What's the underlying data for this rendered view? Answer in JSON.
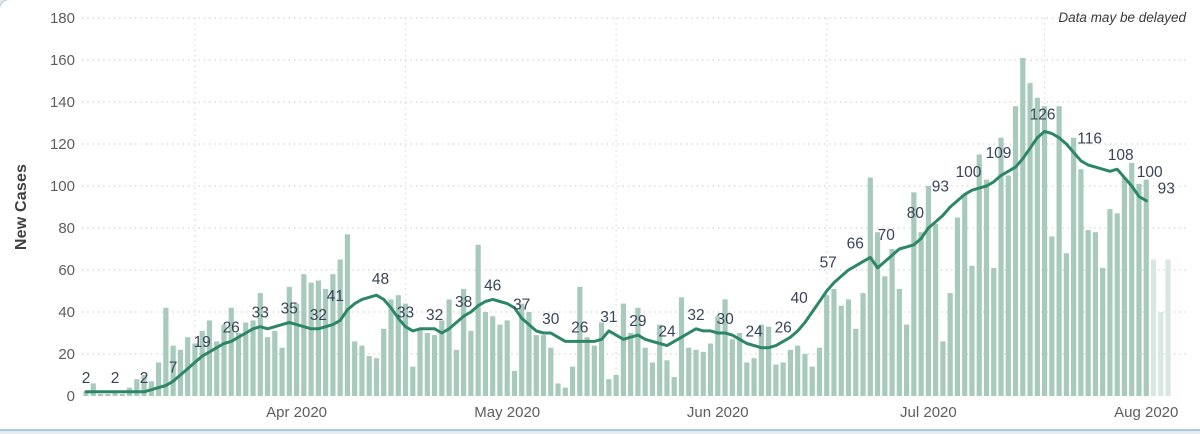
{
  "annotation": "Data may be delayed",
  "chart_data": {
    "type": "bar+line",
    "ylabel": "New Cases",
    "ylim": [
      0,
      180
    ],
    "y_ticks": [
      0,
      20,
      40,
      60,
      80,
      100,
      120,
      140,
      160,
      180
    ],
    "grid": "dotted",
    "x_months": [
      {
        "label": "Apr 2020",
        "center_index": 29,
        "start_index": 15
      },
      {
        "label": "May 2020",
        "center_index": 58,
        "start_index": 44
      },
      {
        "label": "Jun 2020",
        "center_index": 87,
        "start_index": 73
      },
      {
        "label": "Jul 2020",
        "center_index": 116,
        "start_index": 102
      },
      {
        "label": "Aug 2020",
        "center_index": 146,
        "start_index": 132
      }
    ],
    "bars": {
      "faded_last_n": 3,
      "values": [
        2,
        6,
        1,
        1,
        2,
        1,
        4,
        8,
        10,
        7,
        16,
        42,
        24,
        22,
        28,
        25,
        31,
        36,
        26,
        34,
        42,
        30,
        35,
        36,
        49,
        28,
        31,
        23,
        52,
        44,
        58,
        54,
        55,
        51,
        58,
        65,
        77,
        26,
        24,
        19,
        18,
        32,
        46,
        48,
        44,
        14,
        32,
        30,
        29,
        36,
        46,
        22,
        51,
        31,
        72,
        40,
        38,
        34,
        36,
        12,
        44,
        40,
        29,
        29,
        23,
        6,
        4,
        14,
        52,
        28,
        24,
        35,
        8,
        10,
        44,
        30,
        42,
        23,
        16,
        34,
        17,
        9,
        47,
        23,
        22,
        21,
        25,
        38,
        46,
        27,
        30,
        16,
        18,
        34,
        33,
        15,
        16,
        22,
        24,
        20,
        14,
        23,
        48,
        51,
        43,
        46,
        32,
        49,
        104,
        78,
        57,
        70,
        51,
        34,
        97,
        78,
        100,
        82,
        26,
        49,
        85,
        96,
        62,
        115,
        103,
        61,
        123,
        105,
        138,
        161,
        149,
        142,
        138,
        76,
        138,
        68,
        123,
        108,
        79,
        78,
        61,
        89,
        87,
        104,
        111,
        101,
        103,
        65,
        40,
        65
      ]
    },
    "line": {
      "values": [
        2,
        2,
        2,
        2,
        2,
        2,
        2,
        2,
        2,
        3,
        4,
        5,
        7,
        10,
        13,
        16,
        19,
        21,
        23,
        25,
        26,
        28,
        30,
        32,
        33,
        32,
        33,
        34,
        35,
        34,
        33,
        32,
        32,
        33,
        34,
        36,
        41,
        44,
        46,
        47,
        48,
        46,
        42,
        37,
        33,
        31,
        32,
        32,
        32,
        30,
        32,
        35,
        38,
        40,
        43,
        45,
        46,
        45,
        44,
        42,
        37,
        34,
        31,
        30,
        30,
        28,
        26,
        26,
        26,
        26,
        26,
        27,
        31,
        29,
        27,
        28,
        29,
        27,
        26,
        25,
        24,
        26,
        28,
        30,
        32,
        31,
        31,
        30,
        30,
        29,
        27,
        25,
        24,
        23,
        23,
        24,
        26,
        28,
        31,
        35,
        40,
        45,
        50,
        54,
        57,
        60,
        62,
        64,
        66,
        61,
        64,
        67,
        70,
        71,
        72,
        75,
        80,
        83,
        86,
        90,
        93,
        96,
        98,
        99,
        100,
        102,
        105,
        107,
        109,
        113,
        118,
        123,
        126,
        125,
        123,
        120,
        116,
        112,
        110,
        109,
        108,
        107,
        108,
        104,
        100,
        95,
        93
      ]
    },
    "line_labels": {
      "values": [
        2,
        2,
        2,
        7,
        19,
        26,
        33,
        35,
        32,
        41,
        48,
        33,
        32,
        38,
        46,
        37,
        30,
        26,
        31,
        29,
        24,
        32,
        30,
        24,
        26,
        40,
        57,
        66,
        70,
        80,
        93,
        100,
        109,
        126,
        116,
        108,
        100,
        93
      ],
      "indices": [
        0,
        4,
        8,
        12,
        16,
        20,
        24,
        28,
        32,
        36,
        40,
        44,
        48,
        52,
        56,
        60,
        64,
        68,
        72,
        76,
        80,
        84,
        88,
        92,
        96,
        100,
        104,
        108,
        112,
        116,
        120,
        124,
        128,
        132,
        136,
        140,
        144,
        146
      ],
      "offsets": {
        "36": [
          -12,
          0
        ],
        "40": [
          4,
          -2
        ],
        "100": [
          -13,
          0
        ],
        "104": [
          -13,
          0
        ],
        "108": [
          -15,
          0
        ],
        "112": [
          -13,
          0
        ],
        "116": [
          -13,
          -1
        ],
        "120": [
          -17,
          0
        ],
        "124": [
          -18,
          0
        ],
        "128": [
          -17,
          0
        ],
        "132": [
          -2,
          -3
        ],
        "136": [
          16,
          0
        ],
        "140": [
          18,
          0
        ],
        "144": [
          18,
          0
        ],
        "146": [
          20,
          2
        ]
      }
    },
    "colors": {
      "bar": "#a7cabd",
      "bar_faded": "#d8e7e1",
      "line": "#2e8668",
      "point_label": "#3a4458",
      "axis_text": "#605e5c",
      "gridline": "#d2d0ce"
    }
  }
}
